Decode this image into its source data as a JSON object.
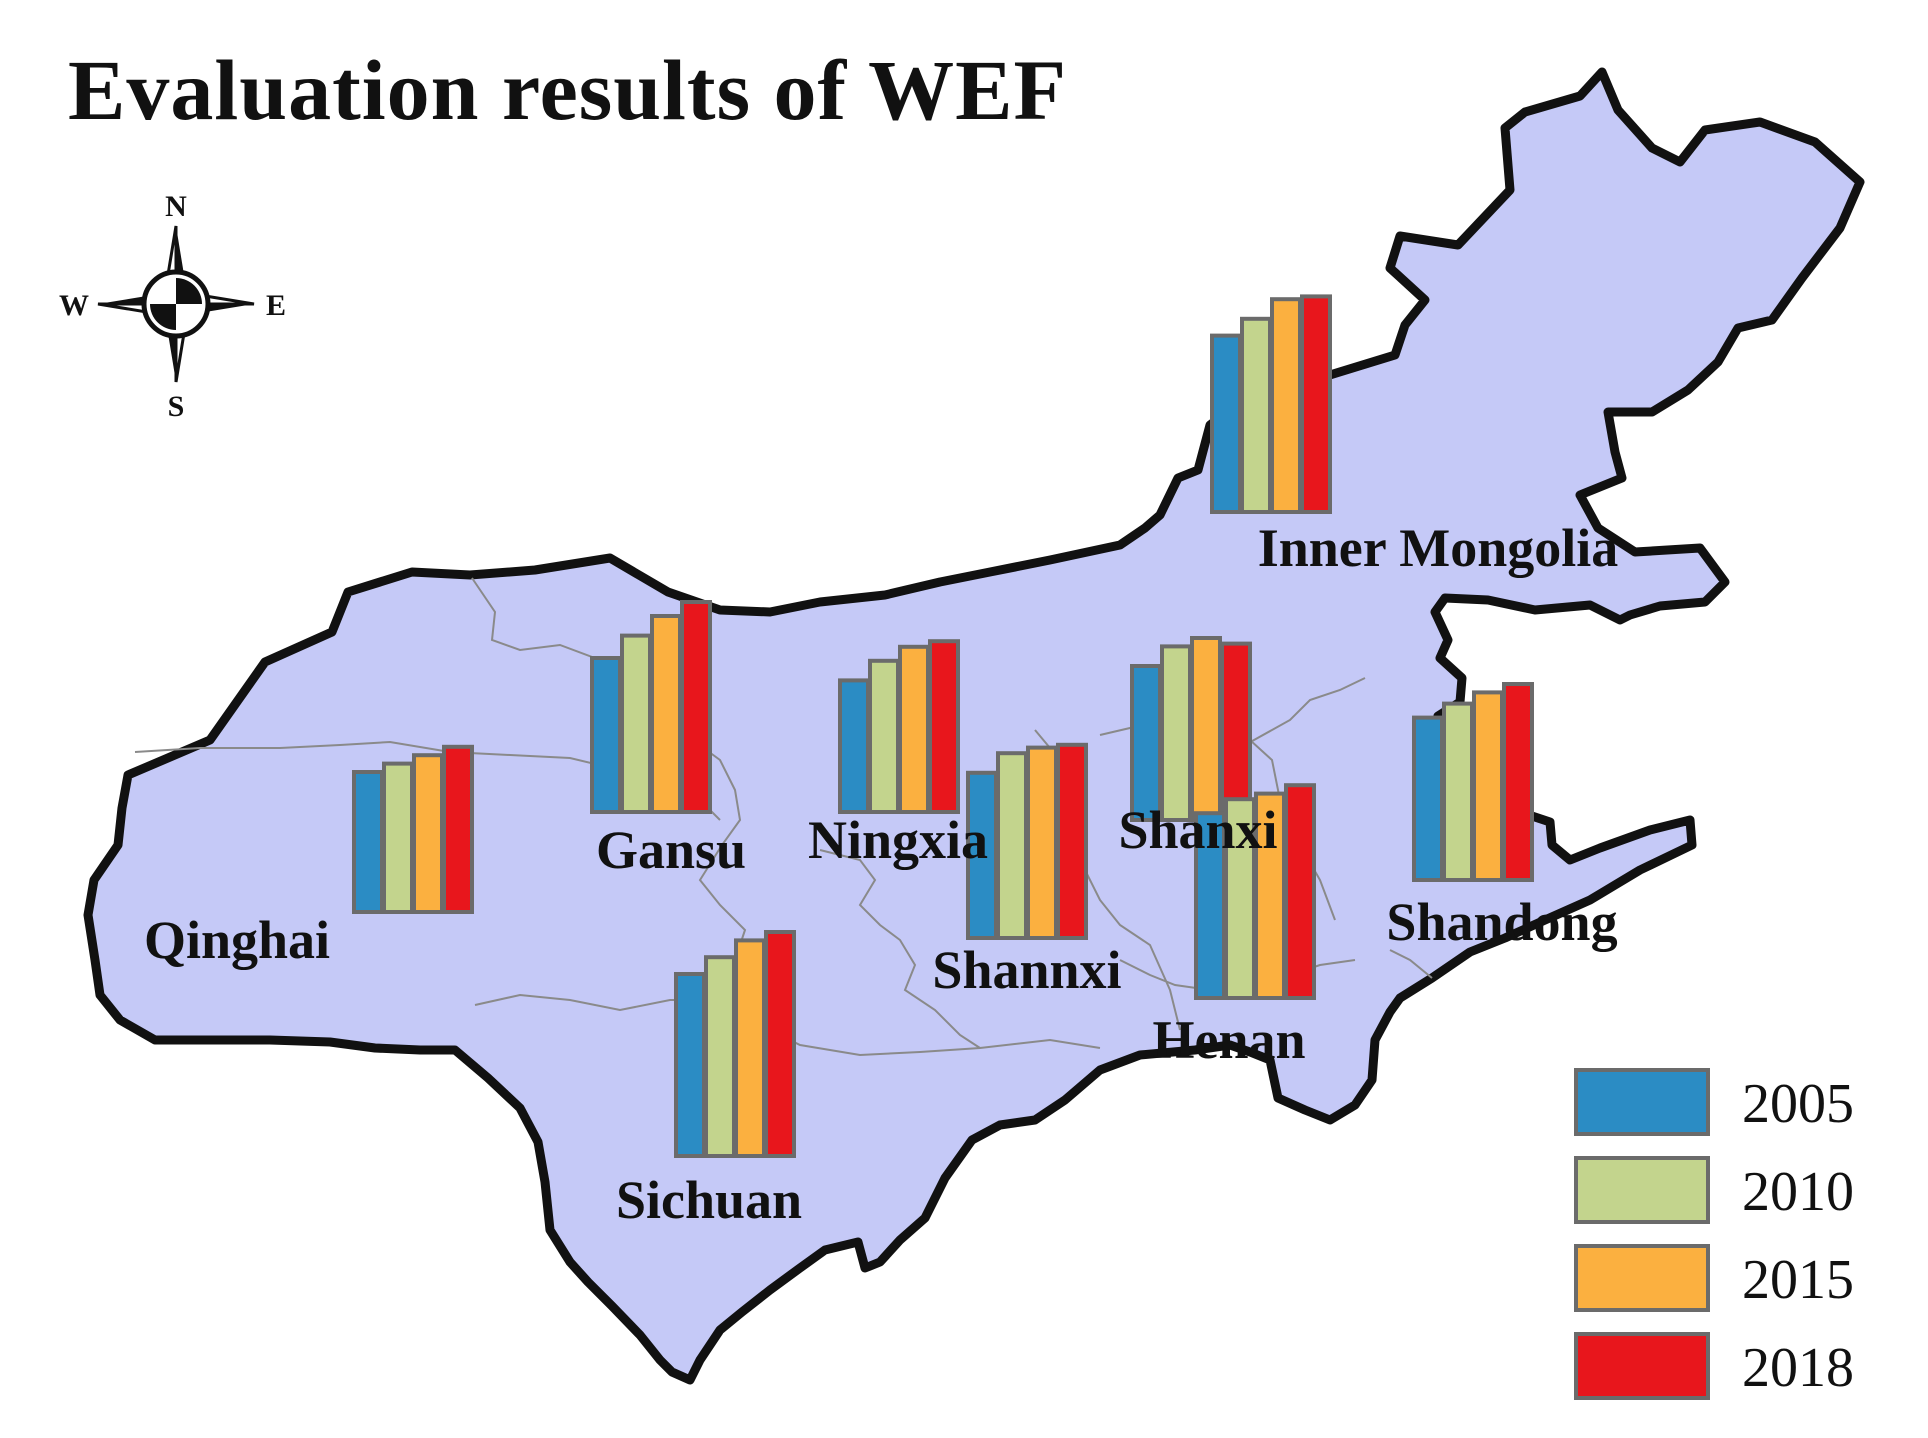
{
  "title": "Evaluation results of WEF",
  "compass": {
    "n": "N",
    "s": "S",
    "e": "E",
    "w": "W"
  },
  "colors": {
    "land": "#c5c9f7",
    "border": "#111111",
    "province_line": "#8a8a8a",
    "bar_outline": "#6b6b6b",
    "series": [
      "#2b8cc4",
      "#c3d48d",
      "#fbb040",
      "#e8161c"
    ]
  },
  "legend": [
    {
      "label": "2005",
      "color": "#2b8cc4"
    },
    {
      "label": "2010",
      "color": "#c3d48d"
    },
    {
      "label": "2015",
      "color": "#fbb040"
    },
    {
      "label": "2018",
      "color": "#e8161c"
    }
  ],
  "chart_data": {
    "type": "bar",
    "series_names": [
      "2005",
      "2010",
      "2015",
      "2018"
    ],
    "provinces": [
      {
        "name": "Inner Mongolia",
        "values": [
          0.63,
          0.69,
          0.76,
          0.77
        ]
      },
      {
        "name": "Gansu",
        "values": [
          0.55,
          0.63,
          0.7,
          0.75
        ]
      },
      {
        "name": "Qinghai",
        "values": [
          0.5,
          0.53,
          0.56,
          0.59
        ]
      },
      {
        "name": "Ningxia",
        "values": [
          0.47,
          0.54,
          0.59,
          0.61
        ]
      },
      {
        "name": "Shannxi",
        "values": [
          0.59,
          0.66,
          0.68,
          0.69
        ]
      },
      {
        "name": "Shanxi",
        "values": [
          0.55,
          0.62,
          0.65,
          0.63
        ]
      },
      {
        "name": "Henan",
        "values": [
          0.66,
          0.71,
          0.73,
          0.76
        ]
      },
      {
        "name": "Shandong",
        "values": [
          0.58,
          0.63,
          0.67,
          0.7
        ]
      },
      {
        "name": "Sichuan",
        "values": [
          0.65,
          0.71,
          0.77,
          0.8
        ]
      }
    ]
  }
}
